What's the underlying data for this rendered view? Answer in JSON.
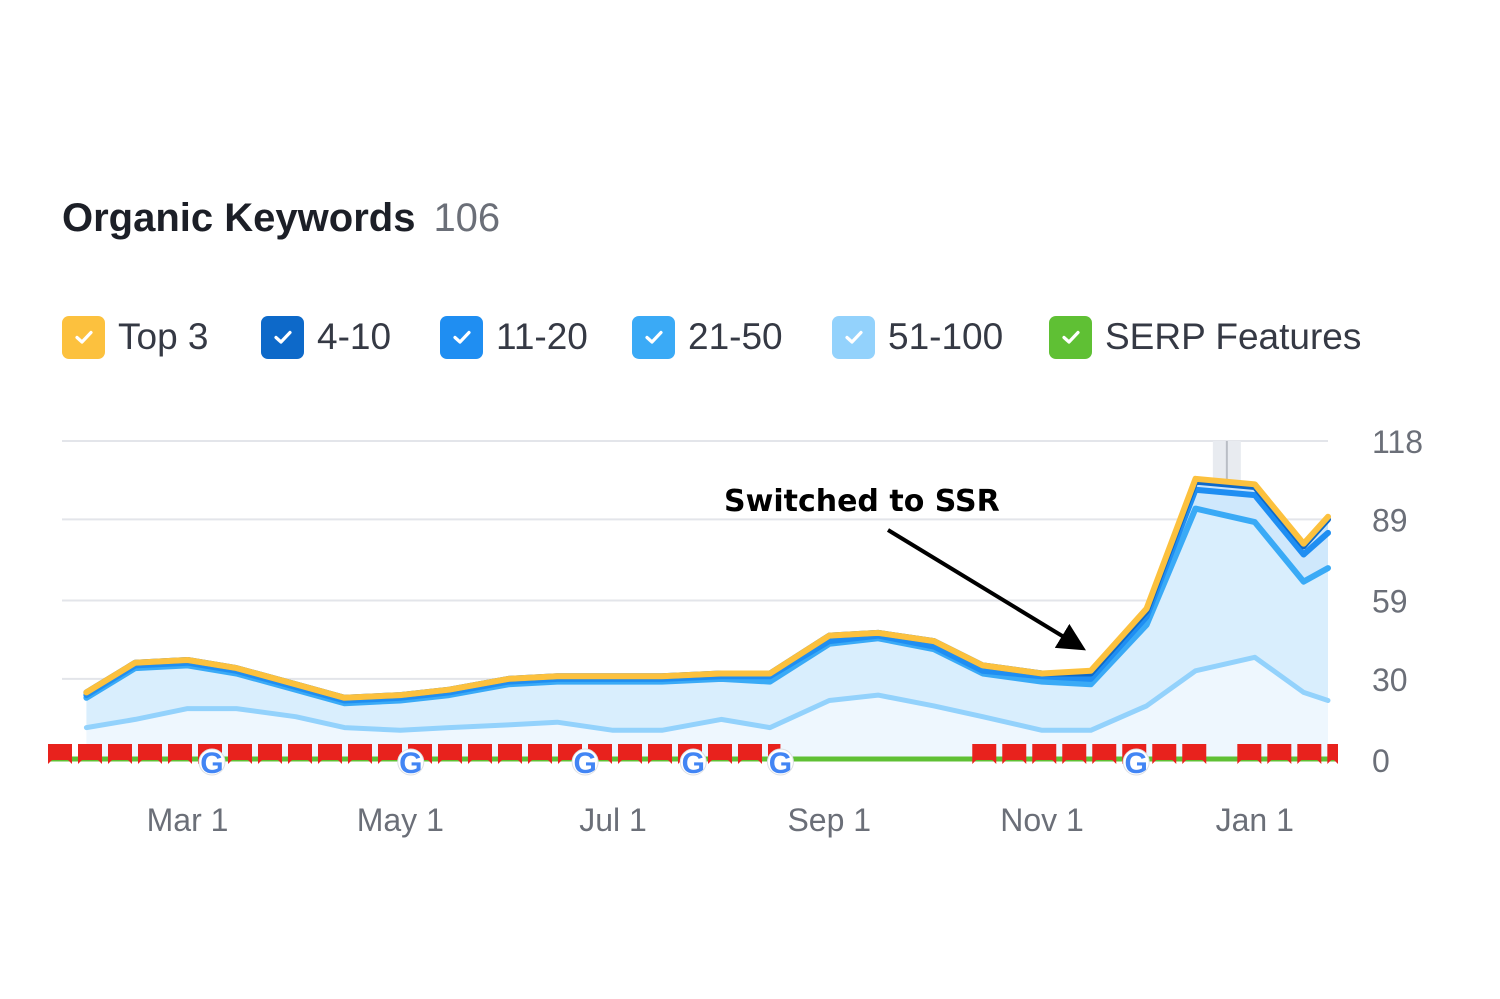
{
  "widget": {
    "title": "Organic Keywords",
    "total": "106"
  },
  "legend": [
    {
      "key": "top3",
      "label": "Top 3",
      "color": "#fcc13e",
      "checked": true
    },
    {
      "key": "4_10",
      "label": "4-10",
      "color": "#0d69c9",
      "checked": true
    },
    {
      "key": "11_20",
      "label": "11-20",
      "color": "#1f8ef2",
      "checked": true
    },
    {
      "key": "21_50",
      "label": "21-50",
      "color": "#3aaaf6",
      "checked": true
    },
    {
      "key": "51_100",
      "label": "51-100",
      "color": "#93d2fc",
      "checked": true
    },
    {
      "key": "serp",
      "label": "SERP Features",
      "color": "#5fc034",
      "checked": true
    }
  ],
  "annotation": {
    "label": "Switched to SSR",
    "date": "Nov 21"
  },
  "chart_data": {
    "type": "area",
    "x_unit": "date",
    "x": [
      "Feb 1",
      "Feb 15",
      "Mar 1",
      "Mar 15",
      "Apr 1",
      "Apr 15",
      "May 1",
      "May 15",
      "Jun 1",
      "Jun 15",
      "Jul 1",
      "Jul 15",
      "Aug 1",
      "Aug 15",
      "Sep 1",
      "Sep 15",
      "Oct 1",
      "Oct 15",
      "Nov 1",
      "Nov 15",
      "Dec 1",
      "Dec 15",
      "Jan 1",
      "Jan 15",
      "Jan 22"
    ],
    "stacked": true,
    "series": [
      {
        "name": "51-100",
        "color": "#93d2fc",
        "values": [
          12,
          15,
          19,
          19,
          16,
          12,
          11,
          12,
          13,
          14,
          11,
          11,
          15,
          12,
          22,
          24,
          20,
          16,
          11,
          11,
          20,
          33,
          38,
          25,
          22
        ]
      },
      {
        "name": "21-50",
        "color": "#3aaaf6",
        "values": [
          11,
          19,
          16,
          13,
          10,
          9,
          11,
          12,
          15,
          15,
          18,
          18,
          15,
          17,
          21,
          21,
          21,
          16,
          18,
          17,
          30,
          60,
          50,
          41,
          49
        ]
      },
      {
        "name": "11-20",
        "color": "#1f8ef2",
        "values": [
          1,
          1,
          1,
          1,
          1,
          1,
          1,
          1,
          1,
          1,
          1,
          1,
          1,
          2,
          1,
          1,
          1,
          1,
          2,
          2,
          3,
          7,
          10,
          10,
          13
        ]
      },
      {
        "name": "4-10",
        "color": "#0d69c9",
        "values": [
          1,
          1,
          1,
          1,
          1,
          1,
          1,
          1,
          1,
          1,
          1,
          1,
          1,
          1,
          2,
          1,
          2,
          2,
          1,
          2,
          2,
          3,
          3,
          3,
          5
        ]
      },
      {
        "name": "Top 3",
        "color": "#fcc13e",
        "values": [
          0,
          0,
          0,
          0,
          0,
          0,
          0,
          0,
          0,
          0,
          0,
          0,
          0,
          0,
          0,
          0,
          0,
          0,
          0,
          1,
          1,
          1,
          1,
          1,
          1
        ]
      }
    ],
    "xticks": [
      "Mar 1",
      "May 1",
      "Jul 1",
      "Sep 1",
      "Nov 1",
      "Jan 1"
    ],
    "yticks": [
      0,
      30,
      59,
      89,
      118
    ],
    "ylim": [
      0,
      118
    ],
    "xlim": [
      "Jan 25",
      "Jan 22"
    ],
    "grid": true,
    "y_axis_position": "right",
    "highlight_date": "Dec 24",
    "serp_features": {
      "color": "#5fc034",
      "flag_color": "#e8221d",
      "flag_runs": [
        [
          "Jan 25",
          "Aug 18"
        ],
        [
          "Oct 12",
          "Dec 20"
        ],
        [
          "Dec 27",
          "Jan 22"
        ]
      ],
      "google_dates": [
        "Mar 8",
        "May 4",
        "Jun 23",
        "Jul 24",
        "Aug 18",
        "Nov 28"
      ]
    }
  }
}
